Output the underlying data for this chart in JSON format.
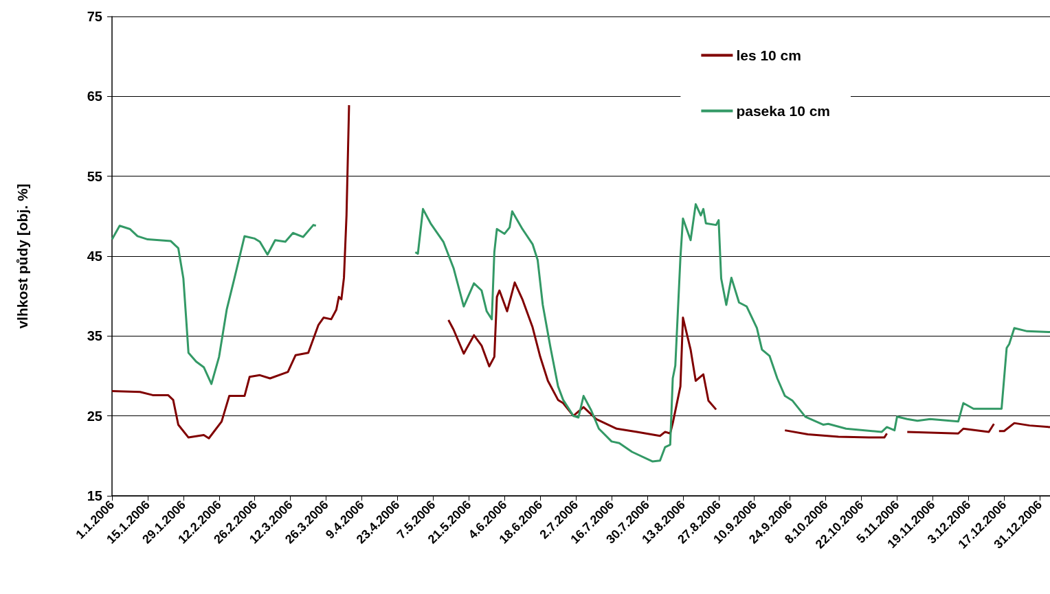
{
  "chart_data": {
    "type": "line",
    "ylabel": "vlhkost půdy [obj. %]",
    "xlim": [
      "2006-01-01",
      "2007-01-04"
    ],
    "xticks": [
      {
        "value": "2006-01-01",
        "label": "1.1.2006"
      },
      {
        "value": "2006-01-15",
        "label": "15.1.2006"
      },
      {
        "value": "2006-01-29",
        "label": "29.1.2006"
      },
      {
        "value": "2006-02-12",
        "label": "12.2.2006"
      },
      {
        "value": "2006-02-26",
        "label": "26.2.2006"
      },
      {
        "value": "2006-03-12",
        "label": "12.3.2006"
      },
      {
        "value": "2006-03-26",
        "label": "26.3.2006"
      },
      {
        "value": "2006-04-09",
        "label": "9.4.2006"
      },
      {
        "value": "2006-04-23",
        "label": "23.4.2006"
      },
      {
        "value": "2006-05-07",
        "label": "7.5.2006"
      },
      {
        "value": "2006-05-21",
        "label": "21.5.2006"
      },
      {
        "value": "2006-06-04",
        "label": "4.6.2006"
      },
      {
        "value": "2006-06-18",
        "label": "18.6.2006"
      },
      {
        "value": "2006-07-02",
        "label": "2.7.2006"
      },
      {
        "value": "2006-07-16",
        "label": "16.7.2006"
      },
      {
        "value": "2006-07-30",
        "label": "30.7.2006"
      },
      {
        "value": "2006-08-13",
        "label": "13.8.2006"
      },
      {
        "value": "2006-08-27",
        "label": "27.8.2006"
      },
      {
        "value": "2006-09-10",
        "label": "10.9.2006"
      },
      {
        "value": "2006-09-24",
        "label": "24.9.2006"
      },
      {
        "value": "2006-10-08",
        "label": "8.10.2006"
      },
      {
        "value": "2006-10-22",
        "label": "22.10.2006"
      },
      {
        "value": "2006-11-05",
        "label": "5.11.2006"
      },
      {
        "value": "2006-11-19",
        "label": "19.11.2006"
      },
      {
        "value": "2006-12-03",
        "label": "3.12.2006"
      },
      {
        "value": "2006-12-17",
        "label": "17.12.2006"
      },
      {
        "value": "2006-12-31",
        "label": "31.12.2006"
      }
    ],
    "ylim": [
      15,
      75
    ],
    "yticks": [
      15,
      25,
      35,
      45,
      55,
      65,
      75
    ],
    "grid": "y",
    "legend": "top right",
    "marker": "none",
    "line_style": "solid",
    "series": [
      {
        "name": "les 10 cm",
        "color": "#800000",
        "x": [
          "2006-01-01",
          "2006-01-12",
          "2006-01-17",
          "2006-01-23",
          "2006-01-25",
          "2006-01-27",
          "2006-01-31",
          "2006-02-06",
          "2006-02-08",
          "2006-02-13",
          "2006-02-16",
          "2006-02-22",
          "2006-02-24",
          "2006-02-28",
          "2006-03-04",
          "2006-03-11",
          "2006-03-14",
          "2006-03-19",
          "2006-03-23",
          "2006-03-25",
          "2006-03-28",
          "2006-03-30",
          "2006-03-31",
          "2006-04-01",
          "2006-04-02",
          "2006-04-03",
          "2006-04-04",
          "2006-04-20",
          "2006-05-13",
          "2006-05-15",
          "2006-05-19",
          "2006-05-23",
          "2006-05-26",
          "2006-05-29",
          "2006-05-31",
          "2006-06-01",
          "2006-06-02",
          "2006-06-05",
          "2006-06-08",
          "2006-06-11",
          "2006-06-15",
          "2006-06-18",
          "2006-06-21",
          "2006-06-25",
          "2006-06-27",
          "2006-07-01",
          "2006-07-05",
          "2006-07-10",
          "2006-07-18",
          "2006-07-26",
          "2006-08-04",
          "2006-08-06",
          "2006-08-08",
          "2006-08-09",
          "2006-08-12",
          "2006-08-13",
          "2006-08-16",
          "2006-08-18",
          "2006-08-21",
          "2006-08-23",
          "2006-08-26",
          "2006-09-10",
          "2006-09-22",
          "2006-10-01",
          "2006-10-13",
          "2006-10-25",
          "2006-10-31",
          "2006-11-01",
          "2006-11-05",
          "2006-11-09",
          "2006-11-29",
          "2006-12-01",
          "2006-12-11",
          "2006-12-13",
          "2006-12-14",
          "2006-12-15",
          "2006-12-17",
          "2006-12-21",
          "2006-12-27",
          "2007-01-04"
        ],
        "values": [
          28.1,
          28.0,
          27.6,
          27.6,
          27.0,
          23.9,
          22.3,
          22.6,
          22.2,
          24.3,
          27.5,
          27.5,
          29.9,
          30.1,
          29.7,
          30.5,
          32.6,
          32.9,
          36.4,
          37.3,
          37.1,
          38.3,
          39.9,
          39.6,
          42.3,
          50.1,
          63.9,
          null,
          37.0,
          35.8,
          32.8,
          35.1,
          33.8,
          31.2,
          32.4,
          39.9,
          40.7,
          38.1,
          41.7,
          39.6,
          36.1,
          32.4,
          29.4,
          27.0,
          26.6,
          25.0,
          26.1,
          24.6,
          23.4,
          23.0,
          22.5,
          23.0,
          22.8,
          24.1,
          28.7,
          37.3,
          33.3,
          29.4,
          30.2,
          26.9,
          25.8,
          null,
          23.2,
          22.7,
          22.4,
          22.3,
          22.3,
          22.8,
          null,
          23.0,
          22.8,
          23.4,
          23.0,
          24.0,
          null,
          23.1,
          23.1,
          24.1,
          23.8,
          23.6
        ]
      },
      {
        "name": "paseka 10 cm",
        "color": "#339966",
        "x": [
          "2006-01-01",
          "2006-01-04",
          "2006-01-08",
          "2006-01-11",
          "2006-01-15",
          "2006-01-24",
          "2006-01-27",
          "2006-01-29",
          "2006-01-30",
          "2006-01-31",
          "2006-02-03",
          "2006-02-06",
          "2006-02-09",
          "2006-02-12",
          "2006-02-15",
          "2006-02-18",
          "2006-02-22",
          "2006-02-26",
          "2006-02-28",
          "2006-03-03",
          "2006-03-06",
          "2006-03-10",
          "2006-03-13",
          "2006-03-17",
          "2006-03-21",
          "2006-03-22",
          "2006-04-15",
          "2006-04-30",
          "2006-05-01",
          "2006-05-03",
          "2006-05-06",
          "2006-05-11",
          "2006-05-15",
          "2006-05-19",
          "2006-05-23",
          "2006-05-26",
          "2006-05-28",
          "2006-05-30",
          "2006-05-31",
          "2006-06-01",
          "2006-06-04",
          "2006-06-06",
          "2006-06-07",
          "2006-06-11",
          "2006-06-15",
          "2006-06-17",
          "2006-06-19",
          "2006-06-22",
          "2006-06-25",
          "2006-06-27",
          "2006-07-01",
          "2006-07-03",
          "2006-07-05",
          "2006-07-08",
          "2006-07-11",
          "2006-07-16",
          "2006-07-19",
          "2006-07-24",
          "2006-08-01",
          "2006-08-04",
          "2006-08-06",
          "2006-08-08",
          "2006-08-09",
          "2006-08-10",
          "2006-08-12",
          "2006-08-13",
          "2006-08-16",
          "2006-08-18",
          "2006-08-20",
          "2006-08-21",
          "2006-08-22",
          "2006-08-26",
          "2006-08-27",
          "2006-08-28",
          "2006-08-30",
          "2006-09-01",
          "2006-09-04",
          "2006-09-07",
          "2006-09-11",
          "2006-09-13",
          "2006-09-16",
          "2006-09-19",
          "2006-09-22",
          "2006-09-25",
          "2006-09-30",
          "2006-10-07",
          "2006-10-09",
          "2006-10-16",
          "2006-10-30",
          "2006-11-01",
          "2006-11-04",
          "2006-11-05",
          "2006-11-09",
          "2006-11-13",
          "2006-11-18",
          "2006-11-29",
          "2006-12-01",
          "2006-12-05",
          "2006-12-14",
          "2006-12-16",
          "2006-12-18",
          "2006-12-19",
          "2006-12-21",
          "2006-12-26",
          "2007-01-04"
        ],
        "values": [
          47.1,
          48.8,
          48.4,
          47.5,
          47.1,
          46.9,
          46.0,
          42.2,
          37.6,
          32.9,
          31.8,
          31.1,
          29.0,
          32.4,
          38.3,
          42.2,
          47.5,
          47.2,
          46.8,
          45.2,
          47.0,
          46.8,
          47.9,
          47.4,
          48.9,
          48.8,
          null,
          45.5,
          45.3,
          50.9,
          49.1,
          46.8,
          43.5,
          38.7,
          41.6,
          40.7,
          38.1,
          37.1,
          45.5,
          48.4,
          47.8,
          48.6,
          50.6,
          48.4,
          46.5,
          44.5,
          38.9,
          33.6,
          28.7,
          27.0,
          25.0,
          24.8,
          27.5,
          25.7,
          23.4,
          21.8,
          21.6,
          20.5,
          19.3,
          19.4,
          21.1,
          21.4,
          29.7,
          31.3,
          44.8,
          49.7,
          47.0,
          51.5,
          50.1,
          50.9,
          49.1,
          48.9,
          49.5,
          42.2,
          38.9,
          42.3,
          39.2,
          38.7,
          36.0,
          33.3,
          32.5,
          29.7,
          27.5,
          26.9,
          24.9,
          23.9,
          24.0,
          23.4,
          23.0,
          23.6,
          23.2,
          24.9,
          24.6,
          24.4,
          24.6,
          24.3,
          26.6,
          25.9,
          25.9,
          25.9,
          33.5,
          34.0,
          36.0,
          35.6,
          35.5
        ]
      }
    ]
  }
}
